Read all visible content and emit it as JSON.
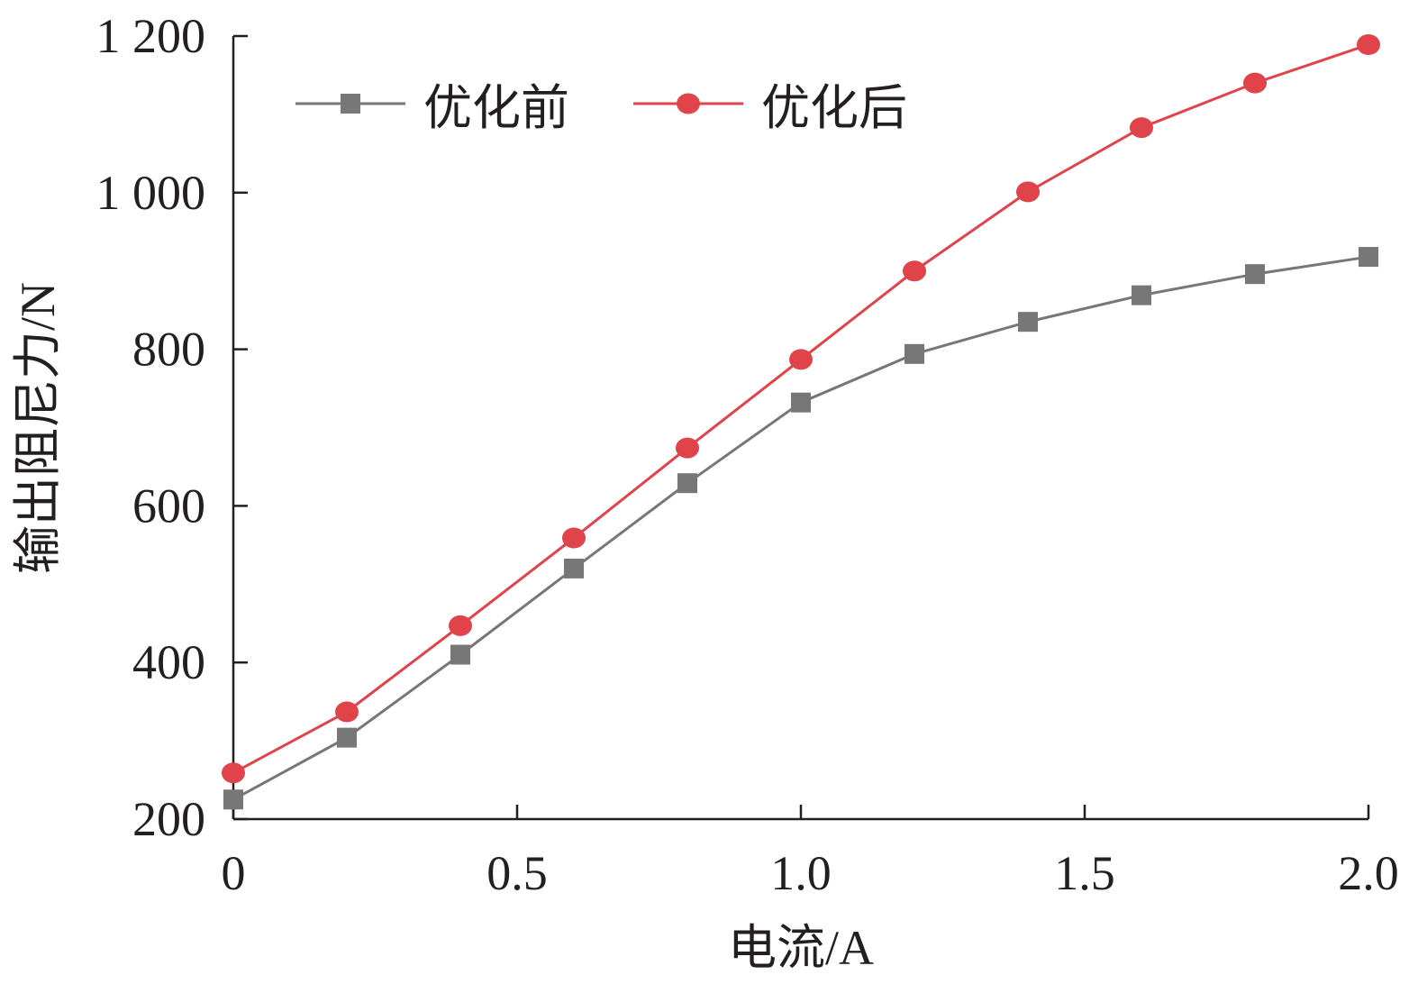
{
  "chart_data": {
    "type": "line",
    "title": "",
    "xlabel": "电流/A",
    "ylabel": "输出阻尼力/N",
    "xlim": [
      0,
      2.0
    ],
    "ylim": [
      200,
      1200
    ],
    "xticks": [
      0,
      0.5,
      1.0,
      1.5,
      2.0
    ],
    "xtick_labels": [
      "0",
      "0.5",
      "1.0",
      "1.5",
      "2.0"
    ],
    "yticks": [
      200,
      400,
      600,
      800,
      1000,
      1200
    ],
    "ytick_labels": [
      "200",
      "400",
      "600",
      "800",
      "1 000",
      "1 200"
    ],
    "grid": false,
    "legend_position": "top-left",
    "x": [
      0,
      0.2,
      0.4,
      0.6,
      0.8,
      1.0,
      1.2,
      1.4,
      1.6,
      1.8,
      2.0
    ],
    "series": [
      {
        "name": "优化前",
        "color": "#777777",
        "marker": "square",
        "values": [
          225,
          304,
          410,
          520,
          629,
          732,
          794,
          835,
          869,
          896,
          918
        ]
      },
      {
        "name": "优化后",
        "color": "#e0434a",
        "marker": "circle",
        "values": [
          259,
          337,
          447,
          559,
          674,
          787,
          900,
          1001,
          1083,
          1140,
          1189
        ]
      }
    ]
  }
}
